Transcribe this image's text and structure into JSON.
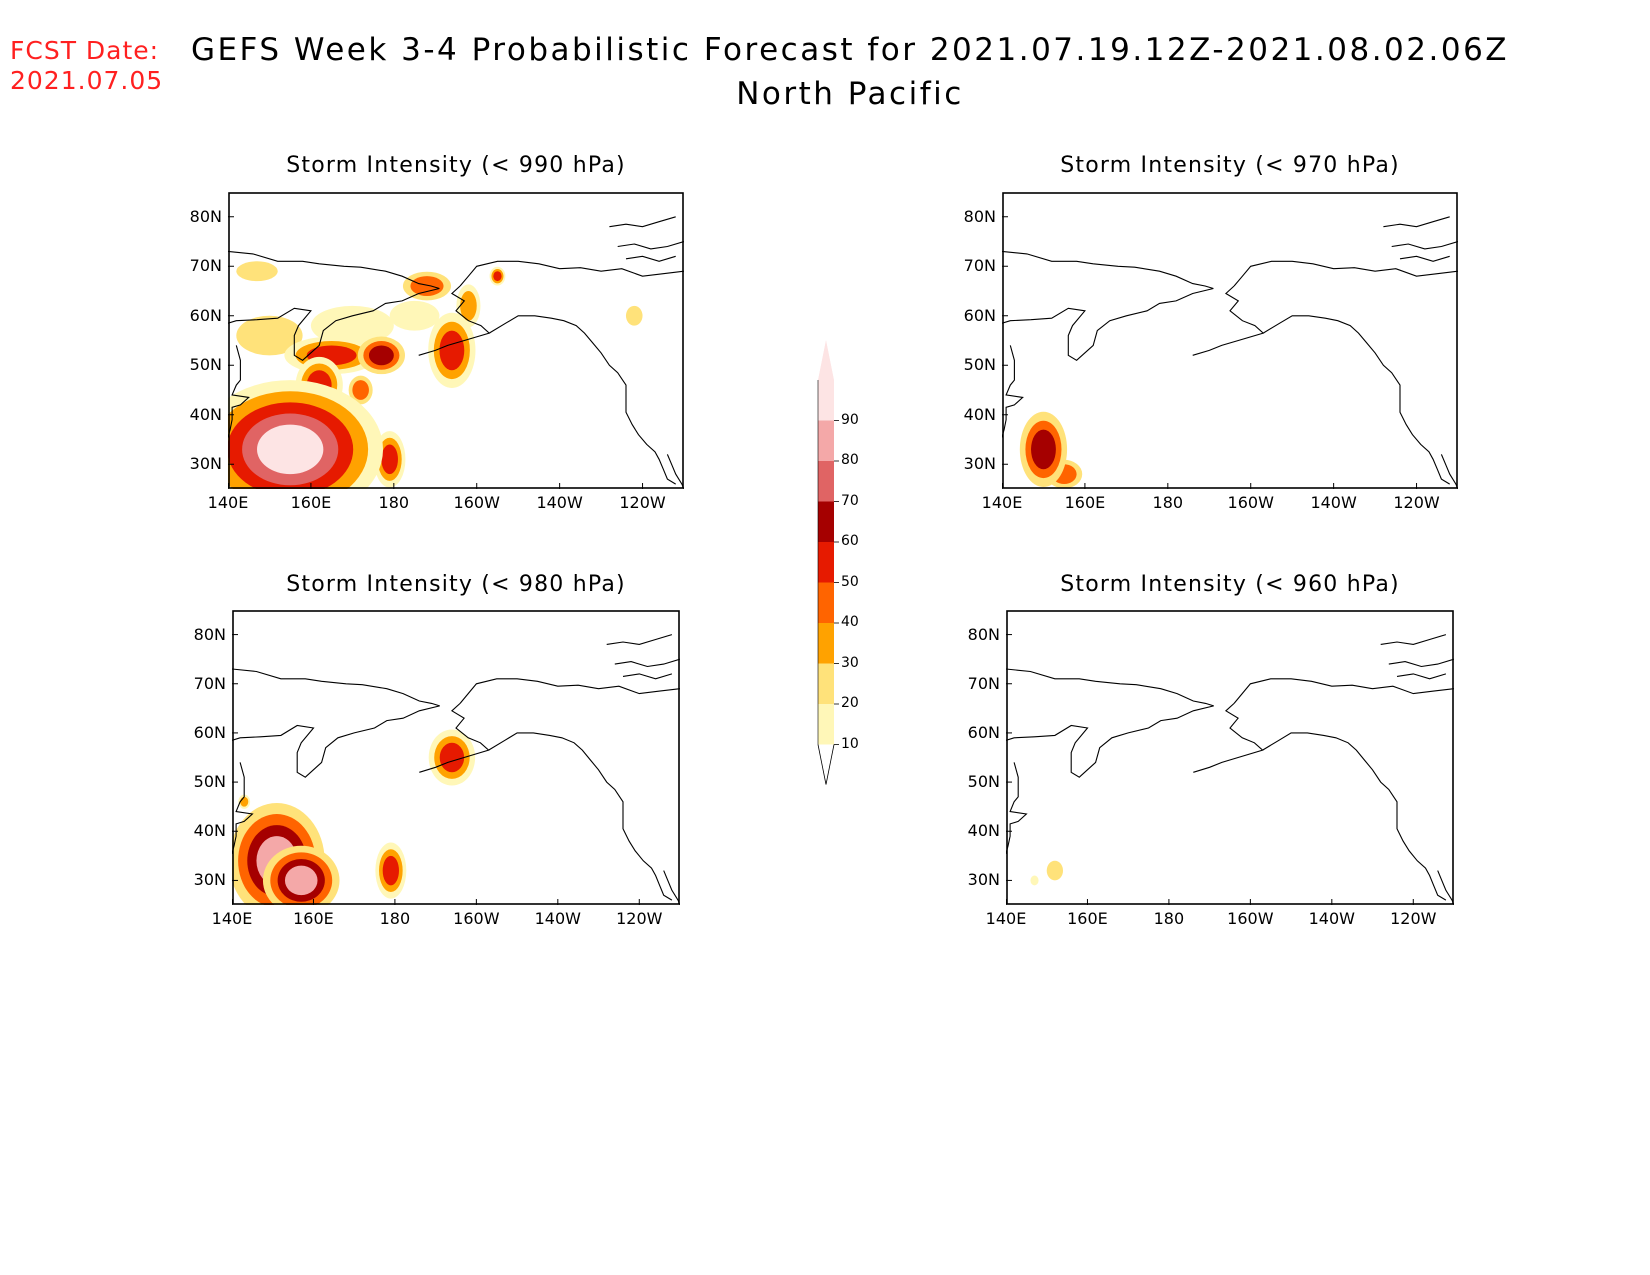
{
  "header": {
    "fcst_label": "FCST Date:",
    "fcst_date": "2021.07.05",
    "title_line1": "GEFS Week 3-4 Probabilistic Forecast for 2021.07.19.12Z-2021.08.02.06Z",
    "title_line2": "North Pacific"
  },
  "axes": {
    "lat_labels": [
      "80N",
      "70N",
      "60N",
      "50N",
      "40N",
      "30N"
    ],
    "lat_values": [
      80,
      70,
      60,
      50,
      40,
      30
    ],
    "lon_labels": [
      "140E",
      "160E",
      "180",
      "160W",
      "140W",
      "120W"
    ],
    "lon_values": [
      140,
      160,
      180,
      200,
      220,
      240
    ],
    "lon_range": [
      140,
      250
    ],
    "lat_range": [
      25,
      85
    ]
  },
  "colorbar": {
    "labels": [
      "10",
      "20",
      "30",
      "40",
      "50",
      "60",
      "70",
      "80",
      "90"
    ],
    "colors": [
      "#fff7b8",
      "#ffe27a",
      "#ffa200",
      "#ff6400",
      "#e61a00",
      "#a50000",
      "#e06464",
      "#f4a8a8",
      "#fde4e4"
    ]
  },
  "panels": [
    {
      "title": "Storm Intensity (< 990 hPa)",
      "threshold_hpa": 990,
      "regions": [
        {
          "lon": 155,
          "lat": 33,
          "prob": 95,
          "rx": 8,
          "ry": 5
        },
        {
          "lon": 148,
          "lat": 34,
          "prob": 65,
          "rx": 6,
          "ry": 6
        },
        {
          "lon": 158,
          "lat": 32,
          "prob": 85,
          "rx": 5,
          "ry": 4
        },
        {
          "lon": 145,
          "lat": 38,
          "prob": 60,
          "rx": 5,
          "ry": 3
        },
        {
          "lon": 142,
          "lat": 30,
          "prob": 55,
          "rx": 4,
          "ry": 5
        },
        {
          "lon": 162,
          "lat": 46,
          "prob": 55,
          "rx": 3,
          "ry": 3
        },
        {
          "lon": 179,
          "lat": 31,
          "prob": 55,
          "rx": 2,
          "ry": 3
        },
        {
          "lon": 165,
          "lat": 30,
          "prob": 45,
          "rx": 3,
          "ry": 2
        },
        {
          "lon": 150,
          "lat": 56,
          "prob": 25,
          "rx": 8,
          "ry": 4
        },
        {
          "lon": 165,
          "lat": 52,
          "prob": 50,
          "rx": 6,
          "ry": 2
        },
        {
          "lon": 177,
          "lat": 52,
          "prob": 60,
          "rx": 3,
          "ry": 2
        },
        {
          "lon": 172,
          "lat": 45,
          "prob": 45,
          "rx": 2,
          "ry": 2
        },
        {
          "lon": 194,
          "lat": 53,
          "prob": 55,
          "rx": 3,
          "ry": 4
        },
        {
          "lon": 188,
          "lat": 66,
          "prob": 40,
          "rx": 4,
          "ry": 2
        },
        {
          "lon": 147,
          "lat": 69,
          "prob": 25,
          "rx": 5,
          "ry": 2
        },
        {
          "lon": 170,
          "lat": 58,
          "prob": 15,
          "rx": 10,
          "ry": 4
        },
        {
          "lon": 185,
          "lat": 60,
          "prob": 15,
          "rx": 6,
          "ry": 3
        },
        {
          "lon": 205,
          "lat": 68,
          "prob": 50,
          "rx": 1,
          "ry": 1
        },
        {
          "lon": 238,
          "lat": 60,
          "prob": 20,
          "rx": 2,
          "ry": 2
        },
        {
          "lon": 198,
          "lat": 62,
          "prob": 35,
          "rx": 2,
          "ry": 3
        }
      ]
    },
    {
      "title": "Storm Intensity (< 970 hPa)",
      "threshold_hpa": 970,
      "regions": [
        {
          "lon": 150,
          "lat": 33,
          "prob": 65,
          "rx": 3,
          "ry": 4
        },
        {
          "lon": 155,
          "lat": 28,
          "prob": 45,
          "rx": 3,
          "ry": 2
        },
        {
          "lon": 148,
          "lat": 30,
          "prob": 15,
          "rx": 2,
          "ry": 2
        }
      ]
    },
    {
      "title": "Storm Intensity (< 980 hPa)",
      "threshold_hpa": 980,
      "regions": [
        {
          "lon": 151,
          "lat": 34,
          "prob": 80,
          "rx": 5,
          "ry": 5
        },
        {
          "lon": 157,
          "lat": 30,
          "prob": 80,
          "rx": 4,
          "ry": 3
        },
        {
          "lon": 146,
          "lat": 32,
          "prob": 35,
          "rx": 4,
          "ry": 4
        },
        {
          "lon": 179,
          "lat": 32,
          "prob": 50,
          "rx": 2,
          "ry": 3
        },
        {
          "lon": 194,
          "lat": 55,
          "prob": 55,
          "rx": 3,
          "ry": 3
        },
        {
          "lon": 143,
          "lat": 46,
          "prob": 35,
          "rx": 1,
          "ry": 1
        }
      ]
    },
    {
      "title": "Storm Intensity (< 960 hPa)",
      "threshold_hpa": 960,
      "regions": [
        {
          "lon": 152,
          "lat": 32,
          "prob": 20,
          "rx": 2,
          "ry": 2
        },
        {
          "lon": 147,
          "lat": 30,
          "prob": 10,
          "rx": 1,
          "ry": 1
        }
      ]
    }
  ]
}
